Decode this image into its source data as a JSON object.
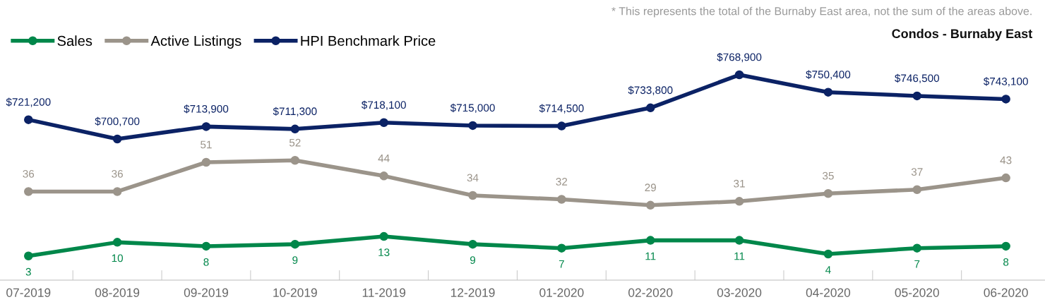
{
  "chart_data": [
    {
      "type": "line",
      "title": "Condos - Burnaby East",
      "annotations": [
        "* This represents the total of the Burnaby East area, not the sum of the areas above."
      ],
      "categories": [
        null,
        null,
        null,
        null,
        null,
        null,
        null,
        null,
        null,
        null,
        null,
        null
      ],
      "series": [
        {
          "name": "HPI Benchmark Price",
          "color": "#0b2265",
          "values": [
            721200,
            700700,
            713900,
            711300,
            718100,
            715000,
            714500,
            733800,
            768900,
            750400,
            746500,
            743100
          ],
          "value_labels": [
            "$721,200",
            "$700,700",
            "$713,900",
            "$711,300",
            "$718,100",
            "$715,000",
            "$714,500",
            "$733,800",
            "$768,900",
            "$750,400",
            "$746,500",
            "$743,100"
          ]
        }
      ],
      "tick_labels": false,
      "data_labels": true,
      "legend": "top left",
      "marker": "circle",
      "line_style": "solid"
    },
    {
      "type": "line",
      "categories": [
        "07-2019",
        "08-2019",
        "09-2019",
        "10-2019",
        "11-2019",
        "12-2019",
        "01-2020",
        "02-2020",
        "03-2020",
        "04-2020",
        "05-2020",
        "06-2020"
      ],
      "series": [
        {
          "name": "Sales",
          "color": "#00874a",
          "values": [
            3,
            10,
            8,
            9,
            13,
            9,
            7,
            11,
            11,
            4,
            7,
            8
          ]
        },
        {
          "name": "Active Listings",
          "color": "#9b948a",
          "values": [
            36,
            36,
            51,
            52,
            44,
            34,
            32,
            29,
            31,
            35,
            37,
            43
          ]
        }
      ],
      "tick_labels": "x",
      "data_labels": true,
      "legend": "top left",
      "marker": "circle",
      "line_style": "solid"
    }
  ]
}
